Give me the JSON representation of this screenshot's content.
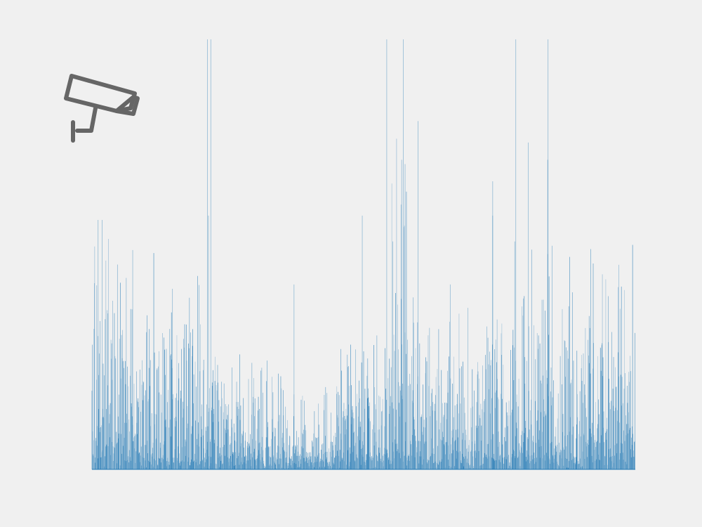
{
  "icons": {
    "logo": "security-camera-icon",
    "logo_color": "#666666"
  },
  "chart_data": {
    "type": "bar",
    "title": "",
    "xlabel": "",
    "ylabel": "",
    "grid": false,
    "legend": "none",
    "xlim": [
      0,
      1600
    ],
    "ylim": [
      0,
      100
    ],
    "bar_color": "#1f77b4",
    "background": "#f0f0f0",
    "series": [
      {
        "values": [
          {
            "x": 18,
            "y": 58
          },
          {
            "x": 30,
            "y": 58
          },
          {
            "x": 120,
            "y": 51
          },
          {
            "x": 340,
            "y": 100
          },
          {
            "x": 350,
            "y": 100
          },
          {
            "x": 343,
            "y": 59
          },
          {
            "x": 868,
            "y": 100
          },
          {
            "x": 917,
            "y": 100
          },
          {
            "x": 960,
            "y": 81
          },
          {
            "x": 912,
            "y": 72
          },
          {
            "x": 922,
            "y": 71
          },
          {
            "x": 1248,
            "y": 100
          },
          {
            "x": 1343,
            "y": 100
          },
          {
            "x": 1285,
            "y": 76
          },
          {
            "x": 1245,
            "y": 53
          },
          {
            "x": 1342,
            "y": 72
          },
          {
            "x": 1355,
            "y": 52
          },
          {
            "x": 1180,
            "y": 67
          },
          {
            "x": 1180,
            "y": 59
          },
          {
            "x": 796,
            "y": 59
          },
          {
            "x": 886,
            "y": 53
          },
          {
            "x": 595,
            "y": 43
          },
          {
            "x": 237,
            "y": 42
          },
          {
            "x": 946,
            "y": 40
          },
          {
            "x": 1055,
            "y": 43
          }
        ]
      }
    ],
    "segments": [
      {
        "x_range": [
          0,
          70
        ],
        "y_range": [
          25,
          45
        ]
      },
      {
        "x_range": [
          70,
          320
        ],
        "y_range": [
          18,
          35
        ]
      },
      {
        "x_range": [
          320,
          560
        ],
        "y_range": [
          8,
          20
        ]
      },
      {
        "x_range": [
          560,
          720
        ],
        "y_range": [
          5,
          14
        ]
      },
      {
        "x_range": [
          720,
          880
        ],
        "y_range": [
          10,
          24
        ]
      },
      {
        "x_range": [
          880,
          930
        ],
        "y_range": [
          30,
          65
        ]
      },
      {
        "x_range": [
          930,
          1240
        ],
        "y_range": [
          12,
          28
        ]
      },
      {
        "x_range": [
          1240,
          1600
        ],
        "y_range": [
          20,
          38
        ]
      }
    ]
  }
}
